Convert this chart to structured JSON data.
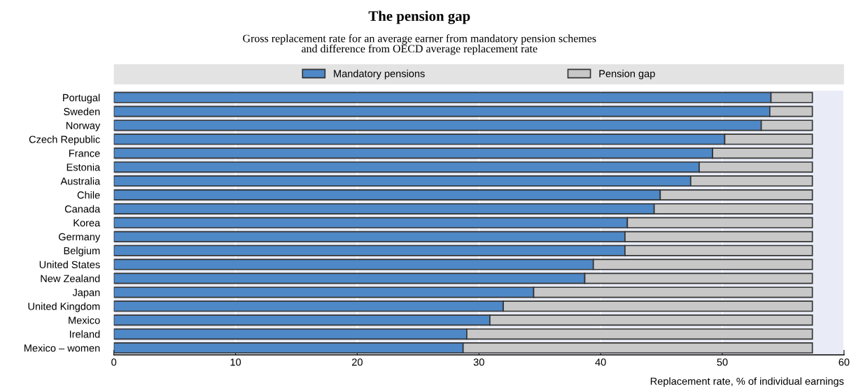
{
  "chart_data": {
    "type": "bar",
    "orientation": "horizontal",
    "stacked": true,
    "title": "The pension gap",
    "subtitle": "Gross replacement rate for an average earner from mandatory pension schemes\nand difference from OECD average replacement rate",
    "xlabel": "Replacement rate, % of individual earnings",
    "categories": [
      "Portugal",
      "Sweden",
      "Norway",
      "Czech Republic",
      "France",
      "Estonia",
      "Australia",
      "Chile",
      "Canada",
      "Korea",
      "Germany",
      "Belgium",
      "United States",
      "New Zealand",
      "Japan",
      "United Kingdom",
      "Mexico",
      "Ireland",
      "Mexico – women"
    ],
    "series": [
      {
        "name": "Mandatory pensions",
        "color": "#4e88c7",
        "values": [
          54.0,
          53.9,
          53.2,
          50.2,
          49.2,
          48.1,
          47.4,
          44.9,
          44.4,
          42.2,
          42.0,
          42.0,
          39.4,
          38.7,
          34.5,
          32.0,
          30.9,
          29.0,
          28.7
        ]
      },
      {
        "name": "Pension gap",
        "color": "#c8c8c8",
        "values": [
          3.4,
          3.5,
          4.2,
          7.2,
          8.2,
          9.3,
          10.0,
          12.5,
          13.0,
          15.2,
          15.4,
          15.4,
          18.0,
          18.7,
          22.9,
          25.4,
          26.5,
          28.4,
          28.7
        ]
      }
    ],
    "xlim": [
      0,
      60
    ],
    "xticks": [
      0,
      10,
      20,
      30,
      40,
      50,
      60
    ],
    "grid": "x",
    "legend": "top"
  }
}
